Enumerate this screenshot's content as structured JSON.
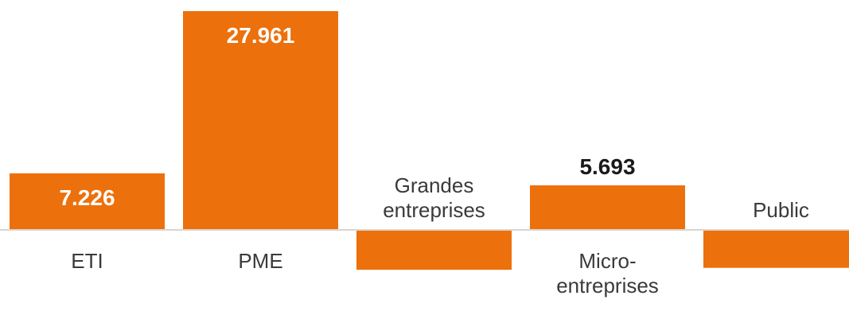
{
  "chart_data": {
    "type": "bar",
    "title": "",
    "xlabel": "",
    "ylabel": "",
    "categories": [
      "ETI",
      "PME",
      "Grandes entreprises",
      "Micro-entreprises",
      "Public"
    ],
    "category_label_lines": [
      [
        "ETI"
      ],
      [
        "PME"
      ],
      [
        "Grandes",
        "entreprises"
      ],
      [
        "Micro-",
        "entreprises"
      ],
      [
        "Public"
      ]
    ],
    "values": [
      7226,
      27961,
      -5100,
      5693,
      -4850
    ],
    "value_labels": [
      "7.226",
      "27.961",
      "",
      "5.693",
      ""
    ],
    "ylim": [
      -5100,
      27961
    ],
    "grid": false,
    "legend": "none",
    "bar_color": "#ec700c",
    "baseline_color": "#d9d6cf",
    "label_color_outside": "#1a1a1a",
    "label_color_inside": "#ffffff"
  }
}
